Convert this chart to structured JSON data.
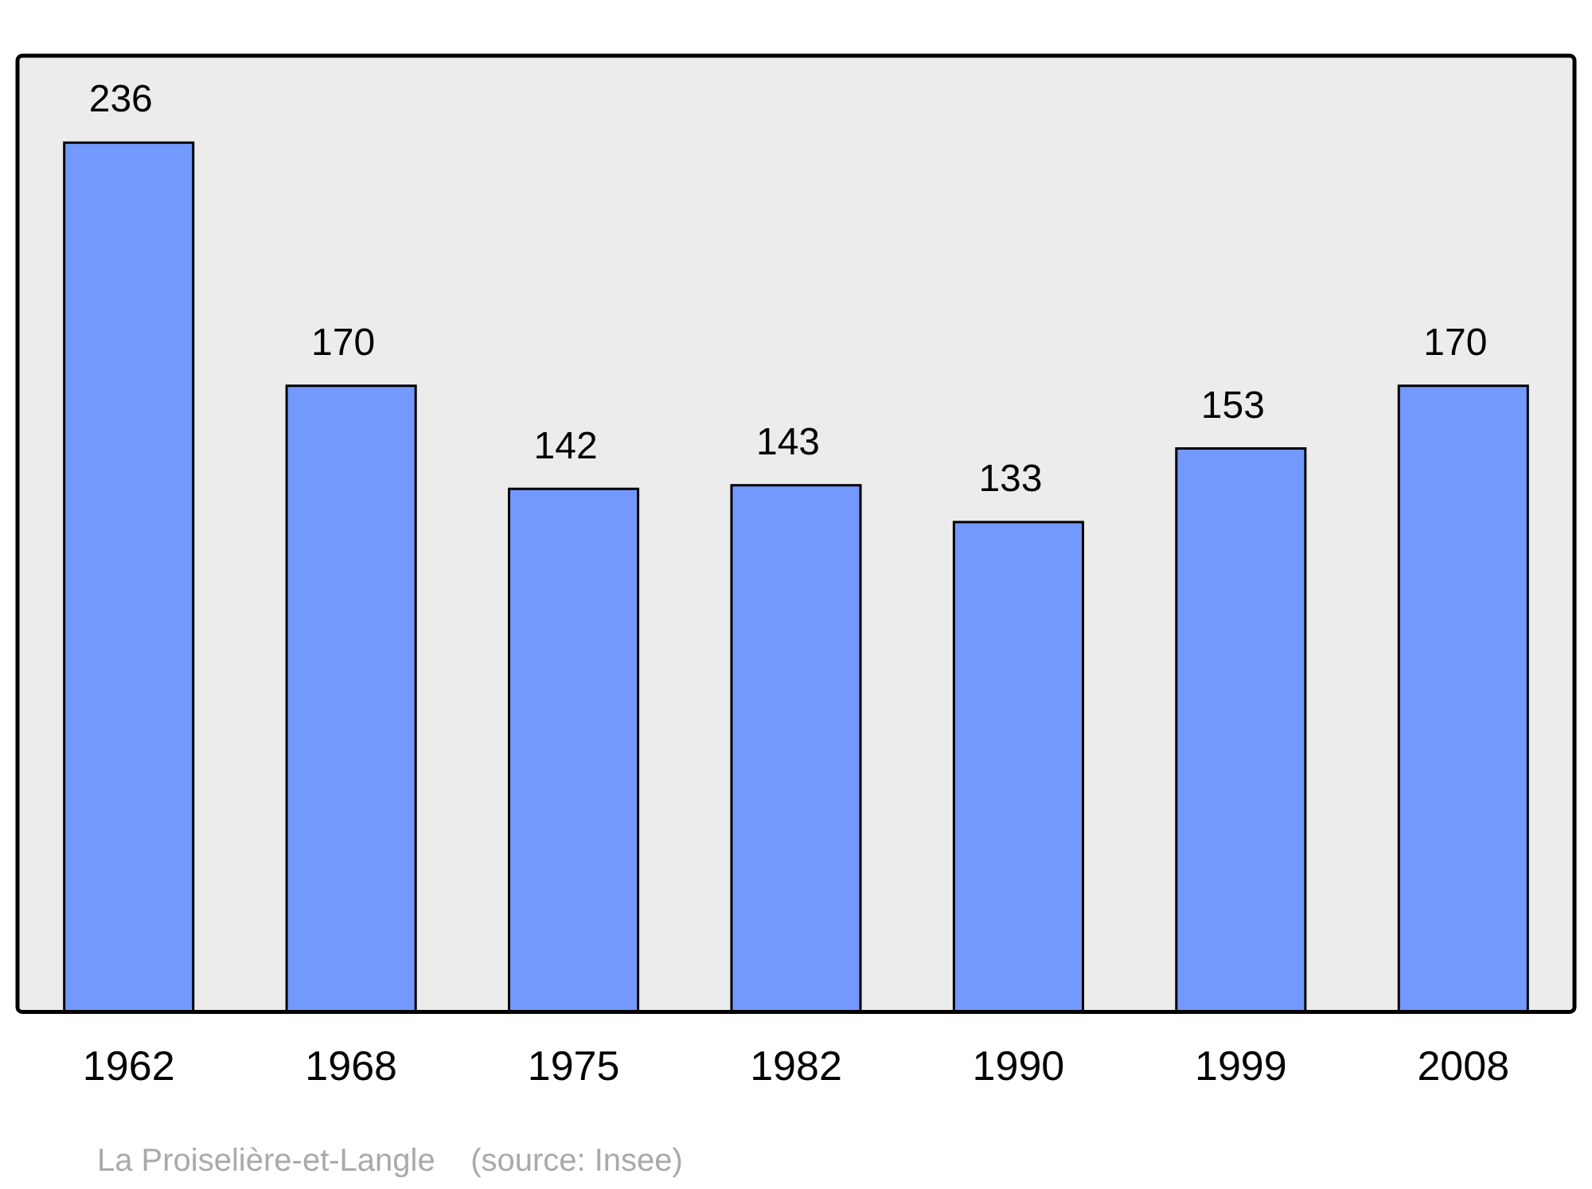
{
  "chart_data": {
    "type": "bar",
    "categories": [
      "1962",
      "1968",
      "1975",
      "1982",
      "1990",
      "1999",
      "2008"
    ],
    "values": [
      236,
      170,
      142,
      143,
      133,
      153,
      170
    ],
    "color": "#7399ff",
    "data_labels": true,
    "grid": false,
    "legend": false,
    "annotations": [
      "La Proiselière-et-Langle    (source: Insee)"
    ]
  }
}
